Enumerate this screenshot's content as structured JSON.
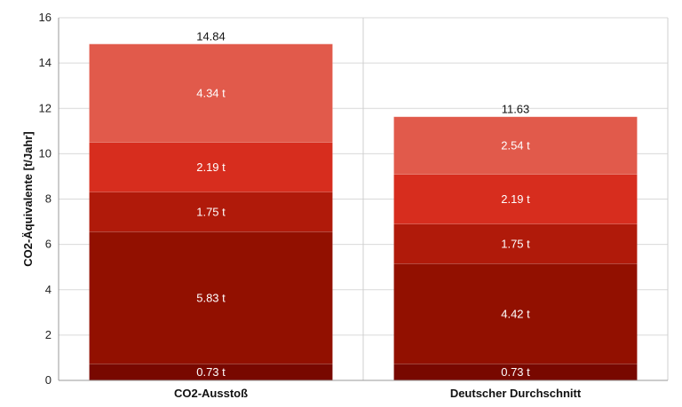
{
  "chart_data": {
    "type": "bar",
    "stacked": true,
    "title": "",
    "xlabel": "",
    "ylabel": "CO2-Äquivalente [t/Jahr]",
    "ylim": [
      0,
      16
    ],
    "yticks": [
      0,
      2,
      4,
      6,
      8,
      10,
      12,
      14,
      16
    ],
    "grid": true,
    "legend": "none",
    "categories": [
      "CO2-Ausstoß",
      "Deutscher Durchschnitt"
    ],
    "series": [
      {
        "values": [
          0.73,
          0.73
        ],
        "labels": [
          "0.73 t",
          "0.73 t"
        ],
        "color": "#780800"
      },
      {
        "values": [
          5.83,
          4.42
        ],
        "labels": [
          "5.83 t",
          "4.42 t"
        ],
        "color": "#921000"
      },
      {
        "values": [
          1.75,
          1.75
        ],
        "labels": [
          "1.75 t",
          "1.75 t"
        ],
        "color": "#b01a0a"
      },
      {
        "values": [
          2.19,
          2.19
        ],
        "labels": [
          "2.19 t",
          "2.19 t"
        ],
        "color": "#d72d1e"
      },
      {
        "values": [
          4.34,
          2.54
        ],
        "labels": [
          "4.34 t",
          "2.54 t"
        ],
        "color": "#e15a4b"
      }
    ],
    "totals": [
      "14.84",
      "11.63"
    ]
  }
}
